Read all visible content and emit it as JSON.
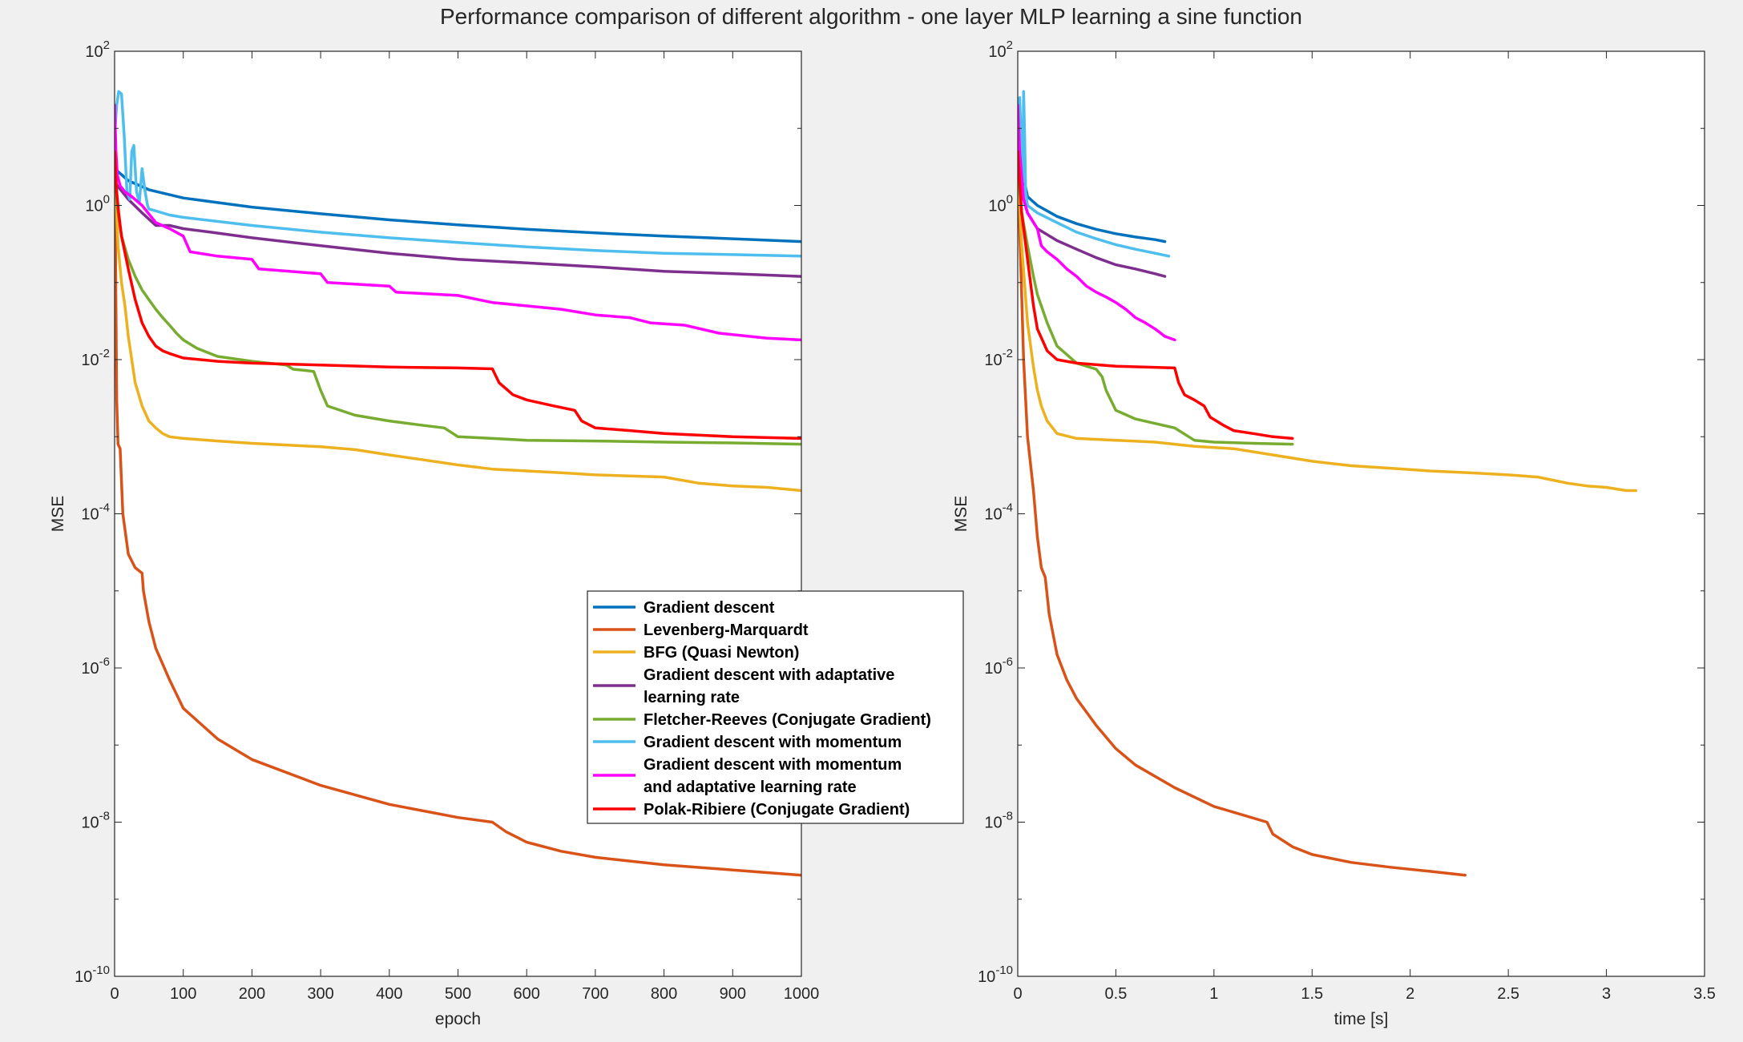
{
  "title": "Performance comparison of different algorithm - one layer MLP learning a sine function",
  "colors": {
    "background": "#f0f0f0",
    "axes_face": "#ffffff",
    "axes_edge": "#262626"
  },
  "chart_data": [
    {
      "type": "line",
      "yscale": "log",
      "xlabel": "epoch",
      "ylabel": "MSE",
      "xlim": [
        0,
        1000
      ],
      "ylim": [
        1e-10,
        100
      ],
      "xticks": [
        0,
        100,
        200,
        300,
        400,
        500,
        600,
        700,
        800,
        900,
        1000
      ],
      "yticks": [
        1e-10,
        1e-08,
        1e-06,
        0.0001,
        0.01,
        1,
        100
      ],
      "ytick_labels": [
        {
          "base": "10",
          "exp": "-10"
        },
        {
          "base": "10",
          "exp": "-8"
        },
        {
          "base": "10",
          "exp": "-6"
        },
        {
          "base": "10",
          "exp": "-4"
        },
        {
          "base": "10",
          "exp": "-2"
        },
        {
          "base": "10",
          "exp": "0"
        },
        {
          "base": "10",
          "exp": "2"
        }
      ],
      "grid": false,
      "legend": {
        "location": "bottom-right",
        "entries": [
          [
            "Gradient descent"
          ],
          [
            "Levenberg-Marquardt"
          ],
          [
            "BFG (Quasi Newton)"
          ],
          [
            "Gradient descent  with adaptative",
            "learning rate"
          ],
          [
            "Fletcher-Reeves (Conjugate Gradient)"
          ],
          [
            "Gradient descent  with momentum"
          ],
          [
            "Gradient descent  with momentum",
            "and adaptative learning rate"
          ],
          [
            "Polak-Ribiere (Conjugate Gradient)"
          ]
        ]
      },
      "series": [
        {
          "name": "Gradient descent",
          "color": "#0072bd",
          "x": [
            0,
            20,
            50,
            100,
            200,
            300,
            400,
            500,
            600,
            700,
            800,
            900,
            1000
          ],
          "y": [
            3.0,
            2.1,
            1.6,
            1.25,
            0.95,
            0.78,
            0.65,
            0.56,
            0.49,
            0.44,
            0.4,
            0.37,
            0.34
          ]
        },
        {
          "name": "Levenberg-Marquardt",
          "color": "#d95319",
          "x": [
            0,
            1,
            2,
            3,
            5,
            8,
            12,
            20,
            30,
            40,
            42,
            50,
            60,
            80,
            100,
            150,
            200,
            300,
            400,
            500,
            550,
            570,
            600,
            650,
            700,
            800,
            900,
            1000
          ],
          "y": [
            5.0,
            0.5,
            0.05,
            0.003,
            0.0008,
            0.0007,
            0.0001,
            3e-05,
            2e-05,
            1.7e-05,
            1e-05,
            4e-06,
            1.8e-06,
            7e-07,
            3e-07,
            1.2e-07,
            6.5e-08,
            3e-08,
            1.7e-08,
            1.15e-08,
            1e-08,
            7.5e-09,
            5.5e-09,
            4.2e-09,
            3.5e-09,
            2.8e-09,
            2.4e-09,
            2.05e-09
          ]
        },
        {
          "name": "BFG (Quasi Newton)",
          "color": "#edb120",
          "x": [
            0,
            5,
            10,
            15,
            20,
            25,
            30,
            40,
            50,
            60,
            70,
            80,
            100,
            150,
            200,
            250,
            300,
            350,
            400,
            450,
            500,
            550,
            600,
            650,
            700,
            750,
            800,
            850,
            900,
            950,
            1000
          ],
          "y": [
            3.0,
            0.3,
            0.1,
            0.05,
            0.02,
            0.01,
            0.005,
            0.0025,
            0.0016,
            0.0013,
            0.0011,
            0.001,
            0.00095,
            0.00088,
            0.00082,
            0.00078,
            0.00074,
            0.00068,
            0.00058,
            0.0005,
            0.00043,
            0.00038,
            0.00036,
            0.00034,
            0.00032,
            0.00031,
            0.0003,
            0.00025,
            0.00023,
            0.00022,
            0.0002
          ]
        },
        {
          "name": "Gradient descent  with adaptative learning rate",
          "color": "#7e2f8e",
          "x": [
            0,
            20,
            40,
            60,
            80,
            100,
            140,
            200,
            300,
            400,
            500,
            600,
            700,
            800,
            900,
            1000
          ],
          "y": [
            2.0,
            1.2,
            0.8,
            0.55,
            0.55,
            0.5,
            0.45,
            0.38,
            0.3,
            0.24,
            0.2,
            0.18,
            0.16,
            0.14,
            0.13,
            0.12
          ]
        },
        {
          "name": "Fletcher-Reeves (Conjugate Gradient)",
          "color": "#77ac30",
          "x": [
            0,
            5,
            10,
            20,
            30,
            40,
            50,
            60,
            70,
            80,
            90,
            100,
            120,
            150,
            200,
            250,
            260,
            280,
            290,
            300,
            310,
            350,
            400,
            450,
            480,
            500,
            550,
            600,
            700,
            800,
            900,
            1000
          ],
          "y": [
            2.0,
            0.8,
            0.4,
            0.2,
            0.12,
            0.08,
            0.06,
            0.045,
            0.035,
            0.028,
            0.022,
            0.018,
            0.014,
            0.011,
            0.0095,
            0.0085,
            0.0075,
            0.0072,
            0.007,
            0.004,
            0.0025,
            0.0019,
            0.0016,
            0.0014,
            0.0013,
            0.001,
            0.00095,
            0.0009,
            0.00088,
            0.00085,
            0.00083,
            0.0008
          ]
        },
        {
          "name": "Gradient descent  with momentum",
          "color": "#4dbeee",
          "x": [
            0,
            3,
            6,
            10,
            14,
            18,
            22,
            25,
            28,
            32,
            36,
            40,
            44,
            48,
            50,
            60,
            80,
            100,
            200,
            300,
            400,
            500,
            600,
            700,
            800,
            900,
            1000
          ],
          "y": [
            8,
            20,
            30,
            28,
            8,
            1.5,
            1.2,
            5,
            6,
            1.5,
            1.1,
            3,
            1.6,
            1.0,
            0.9,
            0.85,
            0.75,
            0.7,
            0.55,
            0.45,
            0.38,
            0.33,
            0.29,
            0.26,
            0.24,
            0.23,
            0.22
          ]
        },
        {
          "name": "Gradient descent  with momentum and adaptative learning rate",
          "color": "#ff00ff",
          "x": [
            0,
            2,
            4,
            8,
            15,
            25,
            40,
            60,
            80,
            100,
            110,
            150,
            200,
            210,
            300,
            310,
            400,
            410,
            500,
            550,
            650,
            700,
            750,
            780,
            830,
            880,
            950,
            1000
          ],
          "y": [
            20,
            5,
            2.5,
            1.8,
            1.5,
            1.3,
            1.0,
            0.6,
            0.5,
            0.4,
            0.25,
            0.22,
            0.2,
            0.15,
            0.13,
            0.1,
            0.09,
            0.075,
            0.068,
            0.055,
            0.045,
            0.038,
            0.035,
            0.03,
            0.028,
            0.022,
            0.019,
            0.018
          ]
        },
        {
          "name": "Polak-Ribiere (Conjugate Gradient)",
          "color": "#ff0000",
          "x": [
            0,
            3,
            6,
            10,
            20,
            30,
            40,
            50,
            60,
            70,
            80,
            100,
            150,
            200,
            300,
            400,
            500,
            550,
            560,
            580,
            600,
            640,
            670,
            680,
            700,
            750,
            800,
            850,
            900,
            1000
          ],
          "y": [
            5.0,
            1.5,
            0.8,
            0.4,
            0.15,
            0.06,
            0.03,
            0.02,
            0.015,
            0.013,
            0.012,
            0.0105,
            0.0095,
            0.009,
            0.0085,
            0.008,
            0.0078,
            0.0076,
            0.005,
            0.0035,
            0.003,
            0.0025,
            0.0022,
            0.0016,
            0.0013,
            0.0012,
            0.0011,
            0.00105,
            0.001,
            0.00095
          ]
        }
      ]
    },
    {
      "type": "line",
      "yscale": "log",
      "xlabel": "time [s]",
      "ylabel": "MSE",
      "xlim": [
        0,
        3.5
      ],
      "ylim": [
        1e-10,
        100
      ],
      "xticks": [
        0,
        0.5,
        1,
        1.5,
        2,
        2.5,
        3,
        3.5
      ],
      "yticks": [
        1e-10,
        1e-08,
        1e-06,
        0.0001,
        0.01,
        1,
        100
      ],
      "ytick_labels": [
        {
          "base": "10",
          "exp": "-10"
        },
        {
          "base": "10",
          "exp": "-8"
        },
        {
          "base": "10",
          "exp": "-6"
        },
        {
          "base": "10",
          "exp": "-4"
        },
        {
          "base": "10",
          "exp": "-2"
        },
        {
          "base": "10",
          "exp": "0"
        },
        {
          "base": "10",
          "exp": "2"
        }
      ],
      "grid": false,
      "series": [
        {
          "name": "Gradient descent",
          "color": "#0072bd",
          "x": [
            0,
            0.02,
            0.05,
            0.1,
            0.2,
            0.3,
            0.4,
            0.5,
            0.6,
            0.7,
            0.75
          ],
          "y": [
            15,
            3,
            1.3,
            1.0,
            0.72,
            0.58,
            0.49,
            0.43,
            0.39,
            0.36,
            0.34
          ]
        },
        {
          "name": "Levenberg-Marquardt",
          "color": "#d95319",
          "x": [
            0,
            0.01,
            0.03,
            0.05,
            0.08,
            0.1,
            0.12,
            0.14,
            0.16,
            0.2,
            0.25,
            0.3,
            0.4,
            0.5,
            0.6,
            0.8,
            1.0,
            1.27,
            1.3,
            1.4,
            1.5,
            1.7,
            1.9,
            2.1,
            2.28
          ],
          "y": [
            5,
            0.5,
            0.01,
            0.001,
            0.0002,
            5e-05,
            2e-05,
            1.5e-05,
            5e-06,
            1.5e-06,
            7e-07,
            4e-07,
            1.8e-07,
            9e-08,
            5.5e-08,
            2.8e-08,
            1.6e-08,
            1e-08,
            7e-09,
            4.8e-09,
            3.8e-09,
            3e-09,
            2.6e-09,
            2.3e-09,
            2.05e-09
          ]
        },
        {
          "name": "BFG (Quasi Newton)",
          "color": "#edb120",
          "x": [
            0,
            0.02,
            0.05,
            0.08,
            0.1,
            0.12,
            0.15,
            0.2,
            0.3,
            0.5,
            0.7,
            0.9,
            1.1,
            1.3,
            1.5,
            1.7,
            1.9,
            2.1,
            2.3,
            2.5,
            2.65,
            2.8,
            2.9,
            3.0,
            3.1,
            3.15
          ],
          "y": [
            3,
            0.3,
            0.03,
            0.008,
            0.004,
            0.0025,
            0.0016,
            0.0011,
            0.00095,
            0.0009,
            0.00085,
            0.00075,
            0.0007,
            0.00058,
            0.00048,
            0.00042,
            0.00039,
            0.00036,
            0.00034,
            0.00032,
            0.0003,
            0.00025,
            0.00023,
            0.00022,
            0.0002,
            0.0002
          ]
        },
        {
          "name": "Gradient descent  with adaptative learning rate",
          "color": "#7e2f8e",
          "x": [
            0,
            0.02,
            0.05,
            0.1,
            0.2,
            0.3,
            0.4,
            0.5,
            0.6,
            0.7,
            0.75
          ],
          "y": [
            5,
            1.5,
            0.8,
            0.5,
            0.35,
            0.27,
            0.21,
            0.17,
            0.15,
            0.13,
            0.12
          ]
        },
        {
          "name": "Fletcher-Reeves (Conjugate Gradient)",
          "color": "#77ac30",
          "x": [
            0,
            0.02,
            0.05,
            0.08,
            0.1,
            0.15,
            0.2,
            0.3,
            0.4,
            0.43,
            0.45,
            0.5,
            0.6,
            0.8,
            0.9,
            1.0,
            1.2,
            1.4
          ],
          "y": [
            3,
            0.8,
            0.3,
            0.12,
            0.07,
            0.03,
            0.015,
            0.009,
            0.0075,
            0.006,
            0.004,
            0.0022,
            0.0017,
            0.0013,
            0.0009,
            0.00085,
            0.00082,
            0.0008
          ]
        },
        {
          "name": "Gradient descent  with momentum",
          "color": "#4dbeee",
          "x": [
            0,
            0.01,
            0.02,
            0.025,
            0.03,
            0.035,
            0.04,
            0.05,
            0.1,
            0.2,
            0.3,
            0.4,
            0.5,
            0.6,
            0.7,
            0.77
          ],
          "y": [
            10,
            25,
            5,
            2,
            30,
            8,
            1.5,
            1.0,
            0.8,
            0.6,
            0.45,
            0.37,
            0.31,
            0.27,
            0.24,
            0.22
          ]
        },
        {
          "name": "Gradient descent  with momentum and adaptative learning rate",
          "color": "#ff00ff",
          "x": [
            0,
            0.01,
            0.03,
            0.05,
            0.1,
            0.12,
            0.15,
            0.2,
            0.25,
            0.3,
            0.35,
            0.4,
            0.45,
            0.5,
            0.55,
            0.6,
            0.65,
            0.7,
            0.75,
            0.8
          ],
          "y": [
            20,
            5,
            1.2,
            0.8,
            0.5,
            0.3,
            0.25,
            0.2,
            0.15,
            0.12,
            0.09,
            0.075,
            0.065,
            0.055,
            0.045,
            0.035,
            0.03,
            0.025,
            0.02,
            0.018
          ]
        },
        {
          "name": "Polak-Ribiere (Conjugate Gradient)",
          "color": "#ff0000",
          "x": [
            0,
            0.02,
            0.05,
            0.08,
            0.1,
            0.15,
            0.2,
            0.3,
            0.5,
            0.8,
            0.82,
            0.85,
            0.9,
            0.95,
            0.98,
            1.05,
            1.1,
            1.2,
            1.3,
            1.4
          ],
          "y": [
            5,
            0.8,
            0.2,
            0.05,
            0.025,
            0.013,
            0.01,
            0.009,
            0.0082,
            0.0078,
            0.005,
            0.0035,
            0.003,
            0.0025,
            0.0018,
            0.0014,
            0.0012,
            0.0011,
            0.001,
            0.00095
          ]
        }
      ]
    }
  ]
}
